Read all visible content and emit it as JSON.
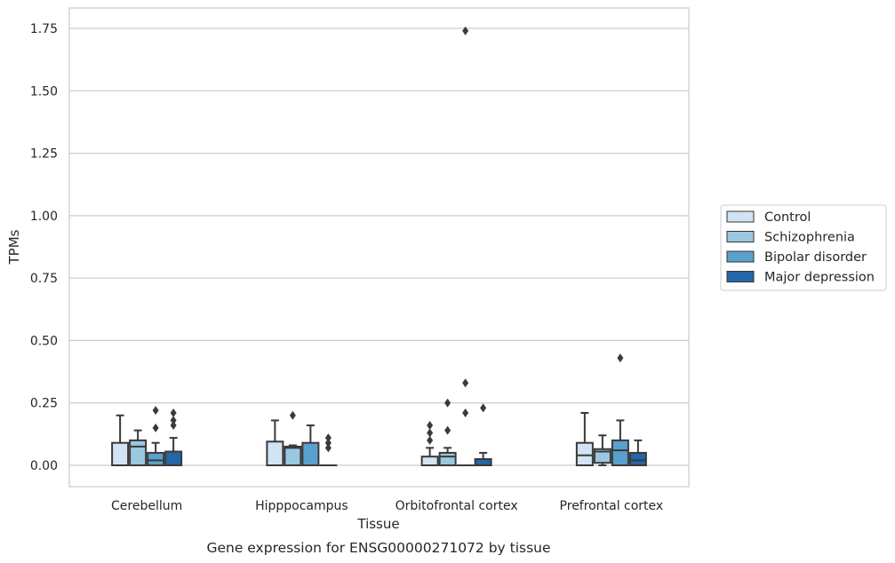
{
  "caption": "Gene expression for ENSG00000271072 by tissue",
  "chart_data": {
    "type": "box",
    "title": "",
    "xlabel": "Tissue",
    "ylabel": "TPMs",
    "ylim": [
      -0.085,
      1.83
    ],
    "yticks": [
      "0.00",
      "0.25",
      "0.50",
      "0.75",
      "1.00",
      "1.25",
      "1.50",
      "1.75"
    ],
    "grid": "horizontal",
    "legend_position": "right",
    "categories": [
      "Cerebellum",
      "Hipppocampus",
      "Orbitofrontal cortex",
      "Prefrontal cortex"
    ],
    "series": [
      {
        "name": "Control",
        "color": "#d2e3f3",
        "boxes": [
          {
            "q1": 0.0,
            "median": 0.0,
            "q3": 0.09,
            "whisker_low": 0.0,
            "whisker_high": 0.2,
            "outliers": []
          },
          {
            "q1": 0.0,
            "median": 0.0,
            "q3": 0.095,
            "whisker_low": 0.0,
            "whisker_high": 0.18,
            "outliers": []
          },
          {
            "q1": 0.0,
            "median": 0.0,
            "q3": 0.035,
            "whisker_low": 0.0,
            "whisker_high": 0.07,
            "outliers": [
              0.1,
              0.13,
              0.16
            ]
          },
          {
            "q1": 0.0,
            "median": 0.04,
            "q3": 0.09,
            "whisker_low": 0.0,
            "whisker_high": 0.21,
            "outliers": []
          }
        ]
      },
      {
        "name": "Schizophrenia",
        "color": "#9ac8e0",
        "boxes": [
          {
            "q1": 0.0,
            "median": 0.075,
            "q3": 0.1,
            "whisker_low": 0.0,
            "whisker_high": 0.14,
            "outliers": []
          },
          {
            "q1": 0.0,
            "median": 0.07,
            "q3": 0.075,
            "whisker_low": 0.0,
            "whisker_high": 0.08,
            "outliers": [
              0.2
            ]
          },
          {
            "q1": 0.0,
            "median": 0.035,
            "q3": 0.05,
            "whisker_low": 0.0,
            "whisker_high": 0.07,
            "outliers": [
              0.14,
              0.25
            ]
          },
          {
            "q1": 0.01,
            "median": 0.055,
            "q3": 0.065,
            "whisker_low": 0.0,
            "whisker_high": 0.12,
            "outliers": []
          }
        ]
      },
      {
        "name": "Bipolar disorder",
        "color": "#5aa0cd",
        "boxes": [
          {
            "q1": 0.0,
            "median": 0.02,
            "q3": 0.05,
            "whisker_low": 0.0,
            "whisker_high": 0.09,
            "outliers": [
              0.15,
              0.22
            ]
          },
          {
            "q1": 0.0,
            "median": 0.0,
            "q3": 0.09,
            "whisker_low": 0.0,
            "whisker_high": 0.16,
            "outliers": []
          },
          {
            "q1": 0.0,
            "median": 0.0,
            "q3": 0.0,
            "whisker_low": 0.0,
            "whisker_high": 0.0,
            "outliers": [
              0.21,
              0.33,
              1.74
            ]
          },
          {
            "q1": 0.0,
            "median": 0.06,
            "q3": 0.1,
            "whisker_low": 0.0,
            "whisker_high": 0.18,
            "outliers": [
              0.43
            ]
          }
        ]
      },
      {
        "name": "Major depression",
        "color": "#2566a8",
        "boxes": [
          {
            "q1": 0.0,
            "median": 0.0,
            "q3": 0.055,
            "whisker_low": 0.0,
            "whisker_high": 0.11,
            "outliers": [
              0.16,
              0.18,
              0.21
            ]
          },
          {
            "q1": 0.0,
            "median": 0.0,
            "q3": 0.0,
            "whisker_low": 0.0,
            "whisker_high": 0.0,
            "outliers": [
              0.07,
              0.09,
              0.11
            ]
          },
          {
            "q1": 0.0,
            "median": 0.0,
            "q3": 0.025,
            "whisker_low": 0.0,
            "whisker_high": 0.05,
            "outliers": [
              0.23
            ]
          },
          {
            "q1": 0.0,
            "median": 0.02,
            "q3": 0.05,
            "whisker_low": 0.0,
            "whisker_high": 0.1,
            "outliers": []
          }
        ]
      }
    ]
  }
}
